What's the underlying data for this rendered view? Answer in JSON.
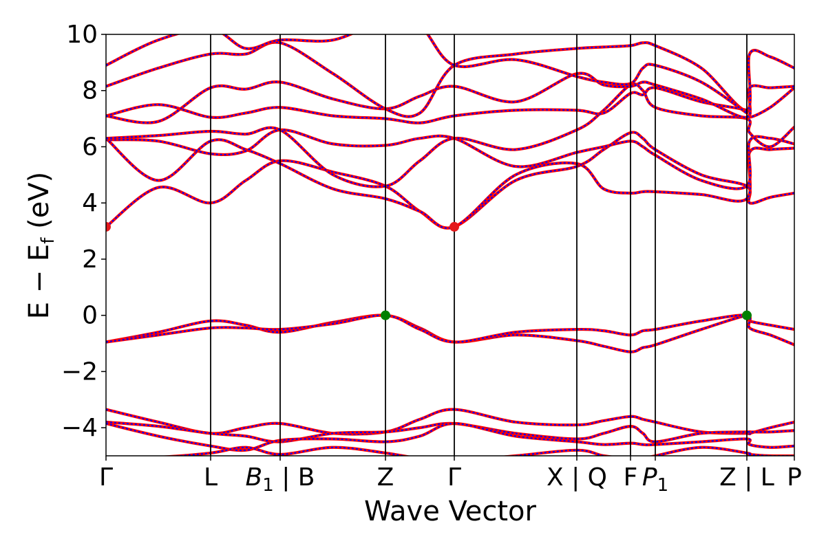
{
  "chart_data": {
    "type": "line",
    "title": "",
    "xlabel": "Wave Vector",
    "ylabel": "E − E_f (eV)",
    "ylabel_main": "E − E",
    "ylabel_sub": "f",
    "ylabel_unit": " (eV)",
    "ylim": [
      -5,
      10
    ],
    "grid": false,
    "yticks": [
      {
        "value": 10,
        "label": "10"
      },
      {
        "value": 8,
        "label": "8"
      },
      {
        "value": 6,
        "label": "6"
      },
      {
        "value": 4,
        "label": "4"
      },
      {
        "value": 2,
        "label": "2"
      },
      {
        "value": 0,
        "label": "0"
      },
      {
        "value": -2,
        "label": "−2"
      },
      {
        "value": -4,
        "label": "−4"
      }
    ],
    "kpoints": [
      {
        "label": "Γ",
        "sub": ""
      },
      {
        "label": "L",
        "sub": ""
      },
      {
        "label": "B",
        "sub": "1",
        "suffix": " | B",
        "italic": true
      },
      {
        "label": "Z",
        "sub": ""
      },
      {
        "label": "Γ",
        "sub": ""
      },
      {
        "label": "X | Q",
        "sub": ""
      },
      {
        "label": "F",
        "sub": ""
      },
      {
        "label": "P",
        "sub": "1",
        "italic": true
      },
      {
        "label": "Z | L",
        "sub": ""
      },
      {
        "label": "P",
        "sub": ""
      }
    ],
    "kpoint_positions": [
      0.0,
      0.152,
      0.253,
      0.406,
      0.506,
      0.684,
      0.762,
      0.798,
      0.931,
      1.0
    ],
    "series_colors": {
      "main": "#ff0000",
      "overlay": "#0000ff"
    },
    "markers": [
      {
        "x": 0.0,
        "y": 3.15,
        "color": "#e41a1c",
        "kind": "cbm"
      },
      {
        "x": 0.506,
        "y": 3.15,
        "color": "#e41a1c",
        "kind": "cbm"
      },
      {
        "x": 0.406,
        "y": 0.0,
        "color": "#008000",
        "kind": "vbm"
      },
      {
        "x": 0.931,
        "y": 0.0,
        "color": "#008000",
        "kind": "vbm"
      }
    ],
    "bands": [
      {
        "x": [
          0.0,
          0.076,
          0.152,
          0.203,
          0.253,
          0.33,
          0.406,
          0.456,
          0.506,
          0.595,
          0.684,
          0.723,
          0.762,
          0.78,
          0.798,
          0.865,
          0.931,
          0.935,
          0.965,
          1.0
        ],
        "y": [
          -0.95,
          -0.6,
          -0.2,
          -0.35,
          -0.6,
          -0.25,
          0.0,
          -0.45,
          -0.95,
          -0.7,
          -0.9,
          -1.1,
          -1.3,
          -1.15,
          -1.05,
          -0.5,
          0.0,
          -0.2,
          -0.35,
          -0.5
        ]
      },
      {
        "x": [
          0.0,
          0.076,
          0.152,
          0.203,
          0.253,
          0.33,
          0.406,
          0.456,
          0.506,
          0.595,
          0.684,
          0.723,
          0.762,
          0.78,
          0.798,
          0.865,
          0.931,
          0.935,
          0.965,
          1.0
        ],
        "y": [
          -0.95,
          -0.7,
          -0.45,
          -0.45,
          -0.5,
          -0.3,
          0.0,
          -0.5,
          -0.95,
          -0.6,
          -0.5,
          -0.55,
          -0.7,
          -0.55,
          -0.5,
          -0.2,
          0.0,
          -0.45,
          -0.7,
          -1.05
        ]
      },
      {
        "x": [
          0.0,
          0.076,
          0.152,
          0.203,
          0.253,
          0.33,
          0.406,
          0.456,
          0.506,
          0.595,
          0.684,
          0.723,
          0.762,
          0.78,
          0.798,
          0.865,
          0.931,
          0.935,
          0.965,
          1.0
        ],
        "y": [
          3.15,
          4.55,
          4.0,
          4.8,
          5.5,
          5.1,
          4.6,
          3.7,
          3.15,
          4.8,
          5.3,
          5.9,
          6.5,
          6.3,
          5.9,
          5.0,
          4.6,
          4.0,
          4.2,
          4.35
        ]
      },
      {
        "x": [
          0.0,
          0.076,
          0.152,
          0.203,
          0.253,
          0.33,
          0.406,
          0.456,
          0.506,
          0.595,
          0.684,
          0.723,
          0.762,
          0.78,
          0.798,
          0.865,
          0.931,
          0.935,
          0.965,
          1.0
        ],
        "y": [
          6.3,
          4.8,
          6.2,
          5.9,
          5.4,
          4.5,
          4.15,
          3.7,
          3.15,
          5.0,
          5.4,
          4.5,
          4.35,
          4.4,
          4.4,
          4.3,
          4.15,
          5.8,
          5.9,
          5.95
        ]
      },
      {
        "x": [
          0.0,
          0.076,
          0.152,
          0.203,
          0.253,
          0.33,
          0.406,
          0.456,
          0.506,
          0.595,
          0.684,
          0.723,
          0.762,
          0.78,
          0.798,
          0.865,
          0.931,
          0.935,
          0.965,
          1.0
        ],
        "y": [
          6.25,
          6.2,
          5.75,
          5.85,
          6.6,
          6.1,
          6.05,
          6.3,
          6.3,
          5.3,
          5.8,
          6.0,
          6.2,
          6.0,
          5.7,
          4.8,
          4.6,
          6.2,
          6.3,
          6.1
        ]
      },
      {
        "x": [
          0.0,
          0.076,
          0.152,
          0.203,
          0.253,
          0.33,
          0.406,
          0.456,
          0.506,
          0.595,
          0.684,
          0.723,
          0.762,
          0.78,
          0.798,
          0.865,
          0.931,
          0.935,
          0.965,
          1.0
        ],
        "y": [
          6.3,
          6.4,
          6.55,
          6.45,
          6.6,
          5.0,
          4.6,
          5.5,
          6.3,
          5.9,
          6.6,
          7.3,
          8.2,
          8.0,
          7.4,
          7.1,
          7.0,
          6.5,
          6.0,
          6.7
        ]
      },
      {
        "x": [
          0.0,
          0.076,
          0.152,
          0.203,
          0.253,
          0.33,
          0.406,
          0.456,
          0.506,
          0.595,
          0.684,
          0.723,
          0.762,
          0.78,
          0.798,
          0.865,
          0.931,
          0.935,
          0.965,
          1.0
        ],
        "y": [
          7.1,
          7.5,
          7.05,
          7.2,
          7.4,
          7.1,
          7.0,
          6.85,
          7.1,
          7.3,
          7.3,
          7.2,
          7.9,
          7.85,
          8.1,
          7.6,
          7.3,
          7.05,
          7.4,
          8.1
        ]
      },
      {
        "x": [
          0.0,
          0.076,
          0.152,
          0.203,
          0.253,
          0.33,
          0.406,
          0.456,
          0.506,
          0.595,
          0.684,
          0.723,
          0.762,
          0.78,
          0.798,
          0.865,
          0.931,
          0.935,
          0.965,
          1.0
        ],
        "y": [
          7.1,
          6.9,
          8.1,
          8.05,
          8.3,
          7.7,
          7.35,
          7.8,
          8.15,
          7.6,
          8.6,
          8.2,
          8.15,
          8.3,
          8.2,
          7.7,
          7.05,
          8.1,
          8.1,
          8.15
        ]
      },
      {
        "x": [
          0.0,
          0.076,
          0.152,
          0.203,
          0.253,
          0.33,
          0.406,
          0.456,
          0.506,
          0.595,
          0.684,
          0.723,
          0.762,
          0.78,
          0.798,
          0.865,
          0.931,
          0.935,
          0.965,
          1.0
        ],
        "y": [
          8.15,
          8.8,
          9.3,
          9.3,
          9.7,
          8.6,
          7.35,
          7.2,
          8.9,
          9.3,
          9.5,
          9.55,
          9.6,
          9.7,
          9.6,
          8.8,
          7.3,
          9.3,
          9.2,
          8.8
        ]
      },
      {
        "x": [
          0.0,
          0.076,
          0.152,
          0.203,
          0.253,
          0.33,
          0.406,
          0.456,
          0.506,
          0.595,
          0.684,
          0.723,
          0.762,
          0.78,
          0.798,
          0.865,
          0.931
        ],
        "y": [
          8.9,
          9.8,
          10.2,
          9.5,
          9.8,
          9.8,
          10.5,
          10.3,
          8.9,
          9.1,
          8.5,
          8.3,
          8.25,
          8.8,
          8.9,
          8.3,
          7.2
        ]
      },
      {
        "x": [
          0.0,
          0.076,
          0.152,
          0.203,
          0.253,
          0.33,
          0.406,
          0.456,
          0.506,
          0.595,
          0.684,
          0.723,
          0.762,
          0.78,
          0.798,
          0.865,
          0.931,
          0.935,
          0.965,
          1.0
        ],
        "y": [
          -3.35,
          -3.8,
          -4.2,
          -4.0,
          -3.85,
          -4.2,
          -4.15,
          -3.7,
          -3.35,
          -3.8,
          -3.9,
          -3.75,
          -3.6,
          -3.7,
          -3.8,
          -4.15,
          -4.2,
          -4.2,
          -4.0,
          -3.8
        ]
      },
      {
        "x": [
          0.0,
          0.076,
          0.152,
          0.203,
          0.253,
          0.33,
          0.406,
          0.456,
          0.506,
          0.595,
          0.684,
          0.723,
          0.762,
          0.78,
          0.798,
          0.865,
          0.931,
          0.935,
          0.965,
          1.0
        ],
        "y": [
          -3.8,
          -3.95,
          -4.2,
          -4.3,
          -4.5,
          -4.2,
          -4.15,
          -4.0,
          -3.85,
          -4.2,
          -4.4,
          -4.2,
          -3.95,
          -4.2,
          -4.5,
          -4.2,
          -4.15,
          -4.15,
          -4.15,
          -4.1
        ]
      },
      {
        "x": [
          0.0,
          0.076,
          0.152,
          0.203,
          0.253,
          0.33,
          0.406,
          0.456,
          0.506,
          0.595,
          0.684,
          0.723,
          0.762,
          0.78,
          0.798,
          0.865,
          0.931,
          0.935,
          0.965,
          1.0
        ],
        "y": [
          -3.85,
          -4.3,
          -4.65,
          -4.8,
          -4.45,
          -4.4,
          -4.5,
          -4.3,
          -3.85,
          -4.3,
          -4.5,
          -4.6,
          -4.55,
          -4.6,
          -4.6,
          -4.5,
          -4.4,
          -4.6,
          -4.7,
          -4.65
        ]
      },
      {
        "x": [
          0.0,
          0.076,
          0.152,
          0.203,
          0.253,
          0.33,
          0.406,
          0.456,
          0.506,
          0.595,
          0.684,
          0.723,
          0.762,
          0.78,
          0.798,
          0.865,
          0.931,
          0.935,
          0.965,
          1.0
        ],
        "y": [
          -5.1,
          -5.05,
          -4.9,
          -4.7,
          -4.95,
          -4.7,
          -4.9,
          -5.1,
          -5.2,
          -5.0,
          -4.8,
          -5.0,
          -5.1,
          -5.1,
          -5.0,
          -4.7,
          -4.9,
          -4.95,
          -5.0,
          -5.0
        ]
      }
    ]
  }
}
